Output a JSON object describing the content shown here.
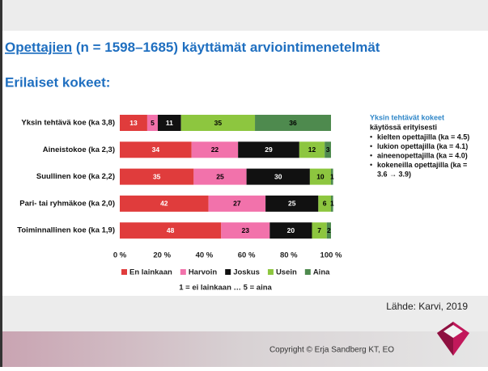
{
  "title_link": "Opettajien",
  "title_rest": " (n = 1598–1685) käyttämät arviointimenetelmät",
  "subtitle": "Erilaiset kokeet:",
  "chart_data": {
    "type": "stacked-barh",
    "categories": [
      "Yksin tehtävä koe (ka 3,8)",
      "Aineistokoe (ka 2,3)",
      "Suullinen koe (ka 2,2)",
      "Pari- tai ryhmäkoe (ka 2,0)",
      "Toiminnallinen koe (ka 1,9)"
    ],
    "series": [
      {
        "name": "En lainkaan",
        "color": "#e03c3c",
        "label_color": "#ffffff",
        "values": [
          13,
          34,
          35,
          42,
          48
        ]
      },
      {
        "name": "Harvoin",
        "color": "#f272ab",
        "label_color": "#000000",
        "values": [
          5,
          22,
          25,
          27,
          23
        ]
      },
      {
        "name": "Joskus",
        "color": "#111111",
        "label_color": "#ffffff",
        "values": [
          11,
          29,
          30,
          25,
          20
        ]
      },
      {
        "name": "Usein",
        "color": "#8dc63f",
        "label_color": "#000000",
        "values": [
          35,
          12,
          10,
          6,
          7
        ]
      },
      {
        "name": "Aina",
        "color": "#4e8a4e",
        "label_color": "#000000",
        "values": [
          36,
          3,
          1,
          1,
          2
        ]
      }
    ],
    "xlim": [
      0,
      100
    ],
    "xticks": [
      {
        "value": 0,
        "label": "0 %"
      },
      {
        "value": 20,
        "label": "20 %"
      },
      {
        "value": 40,
        "label": "40 %"
      },
      {
        "value": 60,
        "label": "60 %"
      },
      {
        "value": 80,
        "label": "80 %"
      },
      {
        "value": 100,
        "label": "100 %"
      }
    ],
    "legend": "bottom",
    "note": "1 = ei lainkaan … 5 = aina"
  },
  "side_note": {
    "heading": "Yksin tehtävät kokeet",
    "intro": "käytössä erityisesti",
    "items": [
      "kielten opettajilla (ka = 4.5)",
      "lukion opettajilla (ka = 4.1)",
      "aineenopettajilla (ka = 4.0)",
      "kokeneilla opettajilla (ka =",
      "3.6 → 3.9)"
    ]
  },
  "source": "Lähde: Karvi, 2019",
  "footer": "Copyright © Erja Sandberg KT, EO"
}
